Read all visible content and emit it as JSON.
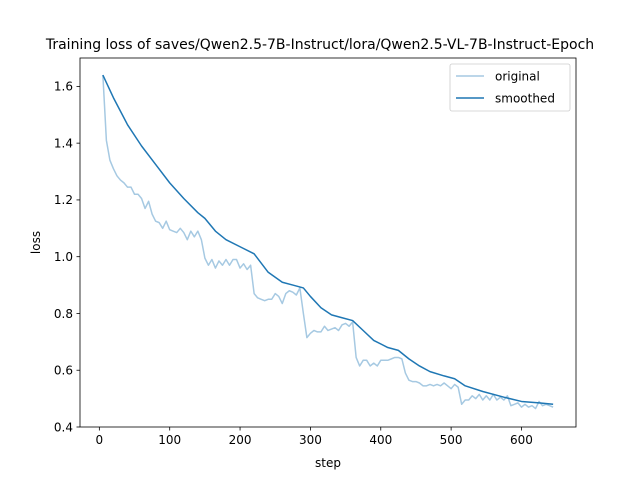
{
  "chart_data": {
    "type": "line",
    "title": "Training loss of saves/Qwen2.5-7B-Instruct/lora/Qwen2.5-VL-7B-Instruct-Epoch",
    "xlabel": "step",
    "ylabel": "loss",
    "xlim": [
      -27.5,
      677.5
    ],
    "ylim": [
      0.4,
      1.7
    ],
    "xticks": [
      0,
      100,
      200,
      300,
      400,
      500,
      600
    ],
    "yticks": [
      0.4,
      0.6,
      0.8,
      1.0,
      1.2,
      1.4,
      1.6
    ],
    "grid": false,
    "legend_position": "top-right",
    "colors": {
      "original": "#a6c9e2",
      "smoothed": "#1f77b4"
    },
    "series": [
      {
        "name": "original",
        "x": [
          5,
          10,
          15,
          20,
          25,
          30,
          35,
          40,
          45,
          50,
          55,
          60,
          65,
          70,
          75,
          80,
          85,
          90,
          95,
          100,
          105,
          110,
          115,
          120,
          125,
          130,
          135,
          140,
          145,
          150,
          155,
          160,
          165,
          170,
          175,
          180,
          185,
          190,
          195,
          200,
          205,
          210,
          215,
          220,
          225,
          230,
          235,
          240,
          245,
          250,
          255,
          260,
          265,
          270,
          275,
          280,
          285,
          290,
          295,
          300,
          305,
          310,
          315,
          320,
          325,
          330,
          335,
          340,
          345,
          350,
          355,
          360,
          365,
          370,
          375,
          380,
          385,
          390,
          395,
          400,
          405,
          410,
          415,
          420,
          425,
          430,
          435,
          440,
          445,
          450,
          455,
          460,
          465,
          470,
          475,
          480,
          485,
          490,
          495,
          500,
          505,
          510,
          515,
          520,
          525,
          530,
          535,
          540,
          545,
          550,
          555,
          560,
          565,
          570,
          575,
          580,
          585,
          590,
          595,
          600,
          605,
          610,
          615,
          620,
          625,
          630,
          635,
          640,
          645
        ],
        "values": [
          1.64,
          1.41,
          1.34,
          1.31,
          1.285,
          1.27,
          1.26,
          1.245,
          1.245,
          1.22,
          1.22,
          1.205,
          1.17,
          1.195,
          1.15,
          1.125,
          1.12,
          1.1,
          1.125,
          1.095,
          1.09,
          1.085,
          1.1,
          1.085,
          1.06,
          1.09,
          1.07,
          1.09,
          1.06,
          0.995,
          0.97,
          0.99,
          0.96,
          0.985,
          0.97,
          0.99,
          0.97,
          0.99,
          0.99,
          0.96,
          0.975,
          0.955,
          0.97,
          0.87,
          0.855,
          0.85,
          0.845,
          0.85,
          0.85,
          0.87,
          0.86,
          0.835,
          0.87,
          0.88,
          0.875,
          0.865,
          0.89,
          0.8,
          0.715,
          0.73,
          0.74,
          0.735,
          0.735,
          0.755,
          0.74,
          0.745,
          0.75,
          0.74,
          0.76,
          0.765,
          0.755,
          0.77,
          0.645,
          0.615,
          0.635,
          0.635,
          0.615,
          0.625,
          0.615,
          0.635,
          0.635,
          0.635,
          0.64,
          0.645,
          0.645,
          0.64,
          0.59,
          0.565,
          0.56,
          0.56,
          0.555,
          0.545,
          0.545,
          0.55,
          0.545,
          0.55,
          0.545,
          0.555,
          0.545,
          0.535,
          0.55,
          0.54,
          0.48,
          0.495,
          0.495,
          0.51,
          0.5,
          0.515,
          0.495,
          0.51,
          0.495,
          0.515,
          0.495,
          0.505,
          0.495,
          0.51,
          0.475,
          0.48,
          0.485,
          0.47,
          0.48,
          0.47,
          0.475,
          0.465,
          0.49,
          0.475,
          0.48,
          0.475,
          0.47
        ]
      },
      {
        "name": "smoothed",
        "x": [
          5,
          20,
          40,
          60,
          80,
          100,
          120,
          140,
          150,
          165,
          180,
          200,
          220,
          240,
          260,
          275,
          290,
          300,
          315,
          330,
          345,
          360,
          375,
          390,
          410,
          425,
          440,
          455,
          470,
          490,
          505,
          520,
          545,
          575,
          600,
          625,
          645
        ],
        "values": [
          1.64,
          1.56,
          1.465,
          1.39,
          1.325,
          1.26,
          1.205,
          1.155,
          1.135,
          1.09,
          1.06,
          1.035,
          1.01,
          0.945,
          0.91,
          0.9,
          0.89,
          0.86,
          0.82,
          0.795,
          0.785,
          0.775,
          0.74,
          0.705,
          0.68,
          0.67,
          0.64,
          0.615,
          0.595,
          0.58,
          0.57,
          0.545,
          0.525,
          0.505,
          0.49,
          0.485,
          0.48
        ]
      }
    ]
  }
}
